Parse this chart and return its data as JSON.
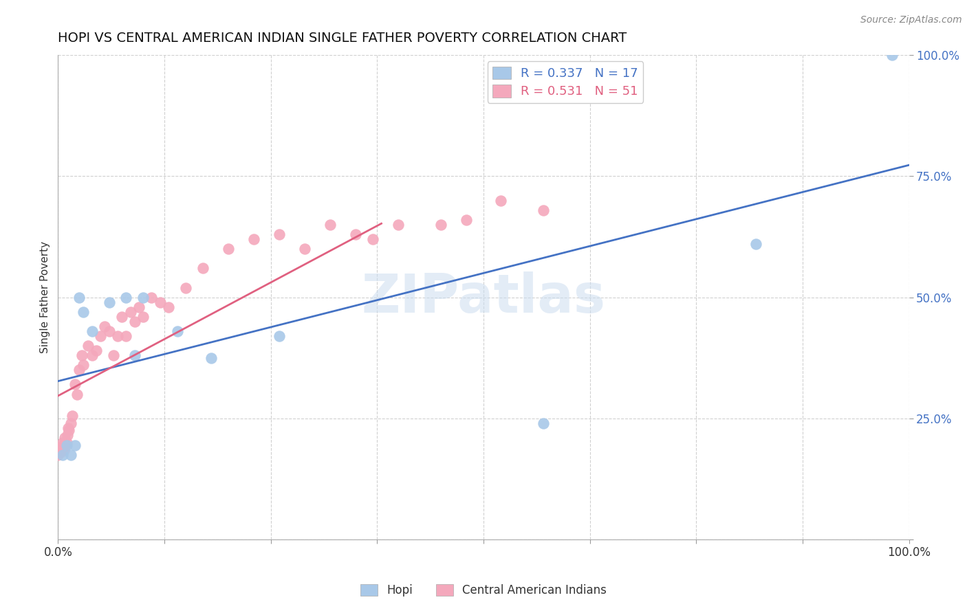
{
  "title": "HOPI VS CENTRAL AMERICAN INDIAN SINGLE FATHER POVERTY CORRELATION CHART",
  "source": "Source: ZipAtlas.com",
  "ylabel": "Single Father Poverty",
  "xlim": [
    0,
    1
  ],
  "ylim": [
    0,
    1
  ],
  "xticks": [
    0,
    0.125,
    0.25,
    0.375,
    0.5,
    0.625,
    0.75,
    0.875,
    1.0
  ],
  "xticklabels": [
    "0.0%",
    "",
    "",
    "",
    "",
    "",
    "",
    "",
    "100.0%"
  ],
  "yticks": [
    0,
    0.25,
    0.5,
    0.75,
    1.0
  ],
  "yticklabels": [
    "",
    "25.0%",
    "50.0%",
    "75.0%",
    "100.0%"
  ],
  "hopi_R": 0.337,
  "hopi_N": 17,
  "cai_R": 0.531,
  "cai_N": 51,
  "hopi_color": "#a8c8e8",
  "cai_color": "#f4a8bc",
  "hopi_line_color": "#4472c4",
  "cai_line_color": "#e06080",
  "watermark": "ZIPatlas",
  "hopi_x": [
    0.005,
    0.01,
    0.015,
    0.02,
    0.025,
    0.03,
    0.04,
    0.06,
    0.08,
    0.09,
    0.1,
    0.14,
    0.18,
    0.26,
    0.57,
    0.82,
    0.98
  ],
  "hopi_y": [
    0.175,
    0.195,
    0.175,
    0.195,
    0.5,
    0.47,
    0.43,
    0.49,
    0.5,
    0.38,
    0.5,
    0.43,
    0.375,
    0.42,
    0.24,
    0.61,
    1.0
  ],
  "cai_x": [
    0.0,
    0.002,
    0.003,
    0.004,
    0.005,
    0.006,
    0.007,
    0.008,
    0.009,
    0.01,
    0.011,
    0.012,
    0.013,
    0.015,
    0.017,
    0.02,
    0.022,
    0.025,
    0.028,
    0.03,
    0.035,
    0.04,
    0.045,
    0.05,
    0.055,
    0.06,
    0.065,
    0.07,
    0.075,
    0.08,
    0.085,
    0.09,
    0.095,
    0.1,
    0.11,
    0.12,
    0.13,
    0.15,
    0.17,
    0.2,
    0.23,
    0.26,
    0.29,
    0.32,
    0.35,
    0.37,
    0.4,
    0.45,
    0.48,
    0.52,
    0.57
  ],
  "cai_y": [
    0.175,
    0.19,
    0.18,
    0.19,
    0.2,
    0.195,
    0.185,
    0.21,
    0.195,
    0.2,
    0.215,
    0.23,
    0.225,
    0.24,
    0.255,
    0.32,
    0.3,
    0.35,
    0.38,
    0.36,
    0.4,
    0.38,
    0.39,
    0.42,
    0.44,
    0.43,
    0.38,
    0.42,
    0.46,
    0.42,
    0.47,
    0.45,
    0.48,
    0.46,
    0.5,
    0.49,
    0.48,
    0.52,
    0.56,
    0.6,
    0.62,
    0.63,
    0.6,
    0.65,
    0.63,
    0.62,
    0.65,
    0.65,
    0.66,
    0.7,
    0.68
  ],
  "background_color": "#ffffff",
  "grid_color": "#d0d0d0"
}
